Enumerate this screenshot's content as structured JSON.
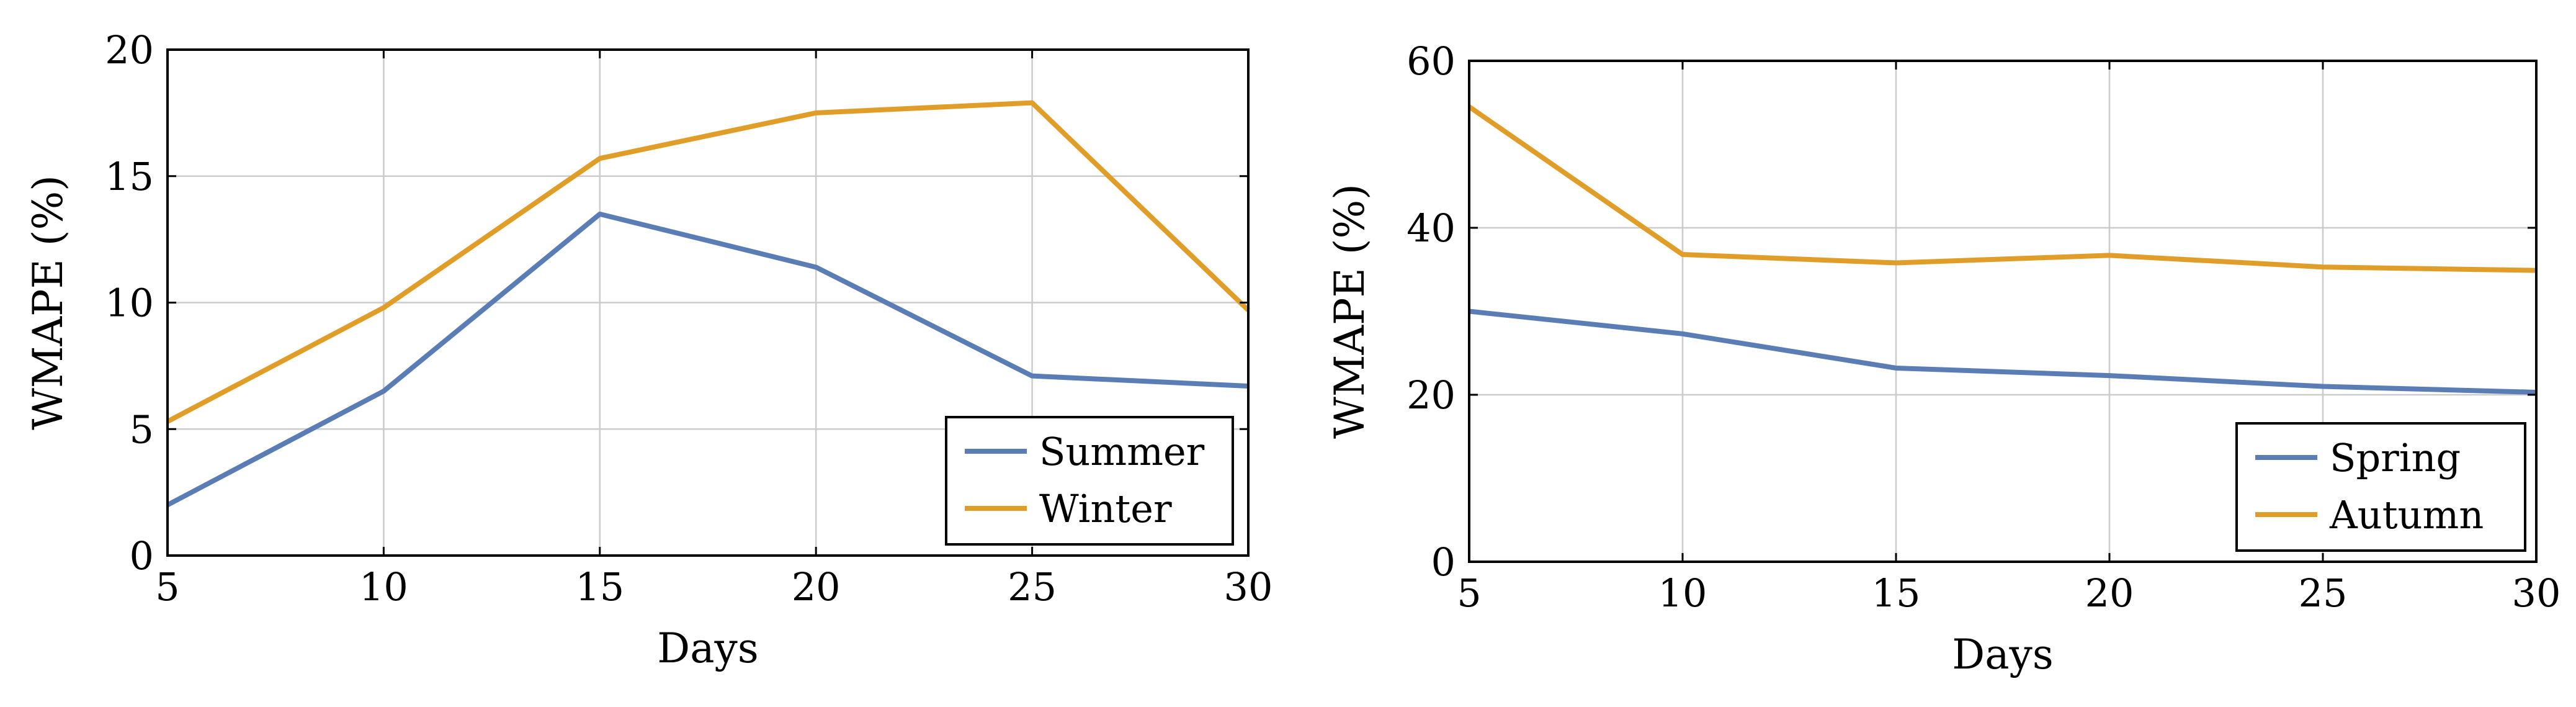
{
  "chart_data": [
    {
      "type": "line",
      "title": "",
      "xlabel": "Days",
      "ylabel": "WMAPE (%)",
      "x": [
        5,
        10,
        15,
        20,
        25,
        30
      ],
      "xlim": [
        5,
        30
      ],
      "ylim": [
        0,
        20
      ],
      "xticks": [
        5,
        10,
        15,
        20,
        25,
        30
      ],
      "yticks": [
        0,
        5,
        10,
        15,
        20
      ],
      "grid": true,
      "legend_position": "bottom-right",
      "series": [
        {
          "name": "Summer",
          "color": "#5b7db5",
          "values": [
            2.0,
            6.5,
            13.5,
            11.4,
            7.1,
            6.7
          ]
        },
        {
          "name": "Winter",
          "color": "#e09e28",
          "values": [
            5.3,
            9.8,
            15.7,
            17.5,
            17.9,
            9.7
          ]
        }
      ]
    },
    {
      "type": "line",
      "title": "",
      "xlabel": "Days",
      "ylabel": "WMAPE (%)",
      "x": [
        5,
        10,
        15,
        20,
        25,
        30
      ],
      "xlim": [
        5,
        30
      ],
      "ylim": [
        0,
        60
      ],
      "xticks": [
        5,
        10,
        15,
        20,
        25,
        30
      ],
      "yticks": [
        0,
        20,
        40,
        60
      ],
      "grid": true,
      "legend_position": "bottom-right",
      "series": [
        {
          "name": "Spring",
          "color": "#5b7db5",
          "values": [
            30.0,
            27.3,
            23.2,
            22.3,
            21.0,
            20.3
          ]
        },
        {
          "name": "Autumn",
          "color": "#e09e28",
          "values": [
            54.5,
            36.8,
            35.8,
            36.7,
            35.3,
            34.9
          ]
        }
      ]
    }
  ]
}
